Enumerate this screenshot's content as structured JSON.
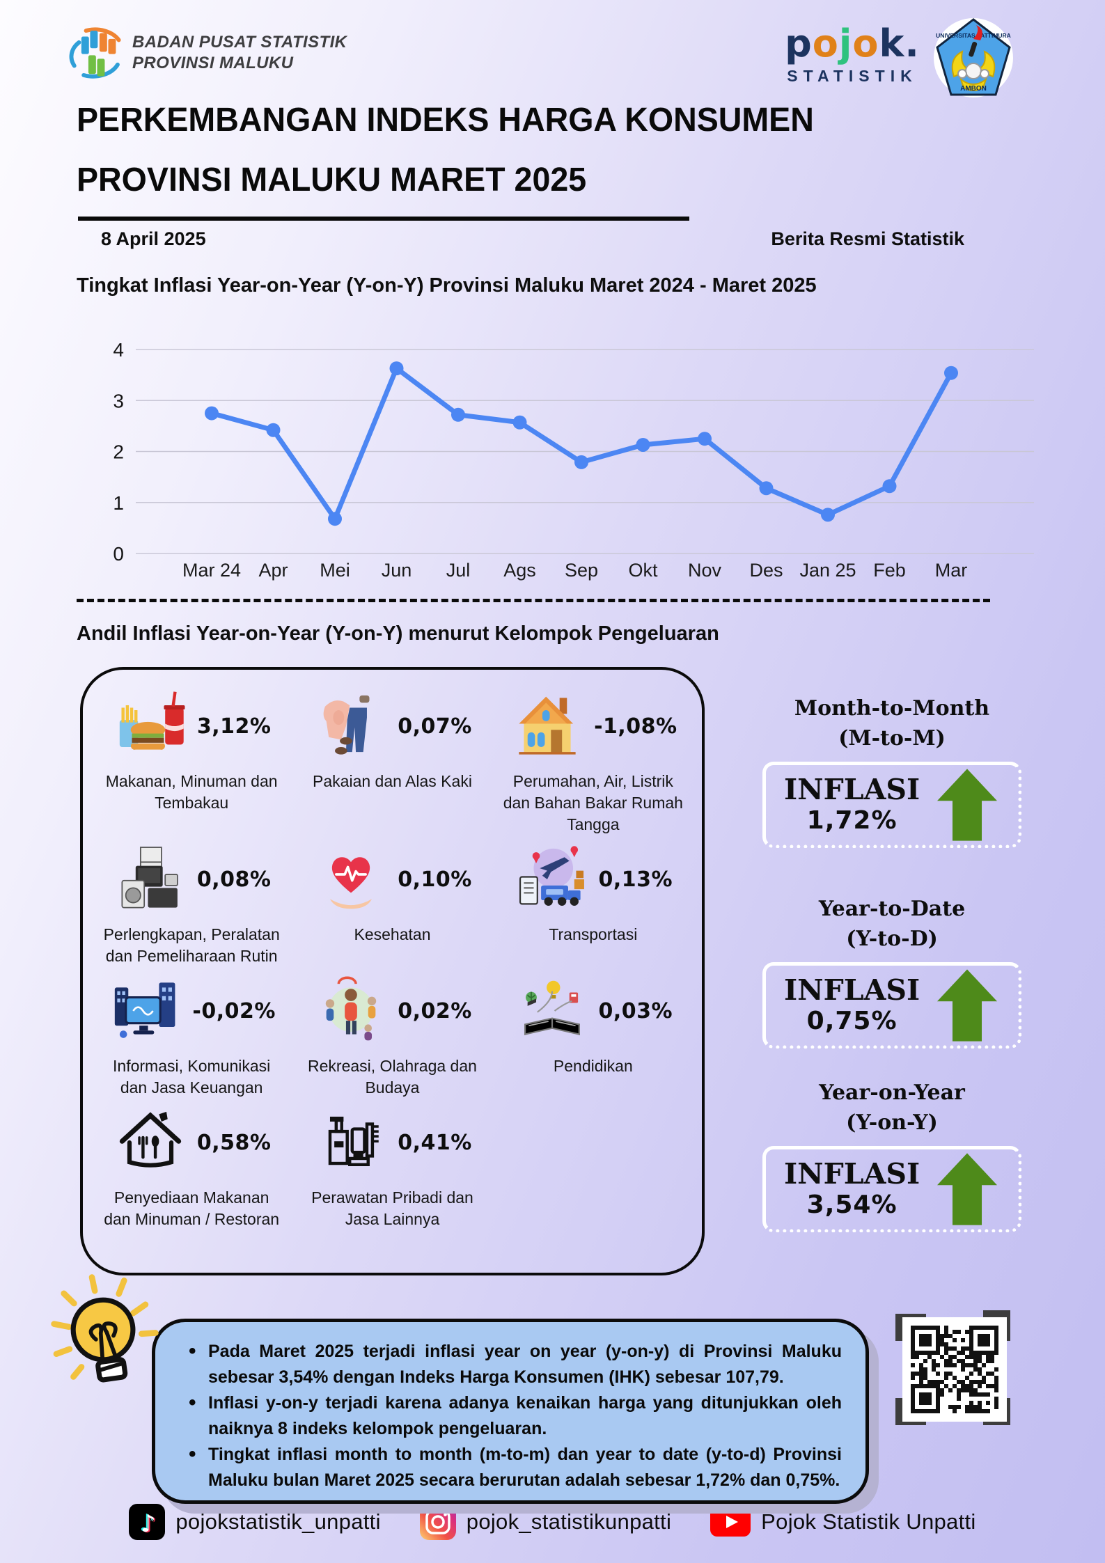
{
  "header": {
    "org_line1": "BADAN PUSAT STATISTIK",
    "org_line2": "PROVINSI MALUKU",
    "pojok_letters": [
      "p",
      "o",
      "j",
      "o",
      "k",
      "."
    ],
    "pojok_sub": "STATISTIK",
    "emblem_top": "UNIVERSITAS PATTIMURA",
    "emblem_bottom": "AMBON"
  },
  "title": {
    "line1": "PERKEMBANGAN INDEKS HARGA KONSUMEN",
    "line2": "PROVINSI MALUKU MARET 2025"
  },
  "meta": {
    "date": "8 April 2025",
    "badge": "Berita Resmi Statistik"
  },
  "section1": {
    "title": "Tingkat Inflasi Year-on-Year (Y-on-Y) Provinsi Maluku Maret 2024 - Maret 2025"
  },
  "chart_data": {
    "type": "line",
    "title": "Tingkat Inflasi Year-on-Year (Y-on-Y) Provinsi Maluku Maret 2024 - Maret 2025",
    "categories": [
      "Mar 24",
      "Apr",
      "Mei",
      "Jun",
      "Jul",
      "Ags",
      "Sep",
      "Okt",
      "Nov",
      "Des",
      "Jan 25",
      "Feb",
      "Mar"
    ],
    "values": [
      2.75,
      2.42,
      0.68,
      3.63,
      2.72,
      2.57,
      1.79,
      2.13,
      2.25,
      1.28,
      0.76,
      1.32,
      3.54
    ],
    "ylim": [
      0,
      4
    ],
    "yticks": [
      0,
      1,
      2,
      3,
      4
    ],
    "grid": true,
    "line_color": "#4c86f3",
    "xlabel": "",
    "ylabel": ""
  },
  "section2": {
    "title": "Andil Inflasi Year-on-Year (Y-on-Y) menurut Kelompok Pengeluaran"
  },
  "andil": {
    "items": [
      {
        "label": "Makanan, Minuman dan Tembakau",
        "value": "3,12%",
        "icon": "food-icon"
      },
      {
        "label": "Pakaian dan Alas Kaki",
        "value": "0,07%",
        "icon": "clothing-icon"
      },
      {
        "label": "Perumahan, Air, Listrik dan Bahan Bakar Rumah Tangga",
        "value": "-1,08%",
        "icon": "house-icon"
      },
      {
        "label": "Perlengkapan, Peralatan dan Pemeliharaan Rutin",
        "value": "0,08%",
        "icon": "appliances-icon"
      },
      {
        "label": "Kesehatan",
        "value": "0,10%",
        "icon": "health-icon"
      },
      {
        "label": "Transportasi",
        "value": "0,13%",
        "icon": "transport-icon"
      },
      {
        "label": "Informasi, Komunikasi dan Jasa Keuangan",
        "value": "-0,02%",
        "icon": "information-icon"
      },
      {
        "label": "Rekreasi, Olahraga dan Budaya",
        "value": "0,02%",
        "icon": "recreation-icon"
      },
      {
        "label": "Pendidikan",
        "value": "0,03%",
        "icon": "education-icon"
      },
      {
        "label": "Penyediaan Makanan dan Minuman / Restoran",
        "value": "0,58%",
        "icon": "restaurant-icon"
      },
      {
        "label": "Perawatan Pribadi dan Jasa Lainnya",
        "value": "0,41%",
        "icon": "personal-care-icon"
      }
    ]
  },
  "panels": [
    {
      "title_line1": "Month-to-Month",
      "title_line2": "(M-to-M)",
      "label": "INFLASI",
      "value": "1,72%"
    },
    {
      "title_line1": "Year-to-Date",
      "title_line2": "(Y-to-D)",
      "label": "INFLASI",
      "value": "0,75%"
    },
    {
      "title_line1": "Year-on-Year",
      "title_line2": "(Y-on-Y)",
      "label": "INFLASI",
      "value": "3,54%"
    }
  ],
  "notes": {
    "bullets": [
      "Pada Maret 2025 terjadi inflasi year on year (y-on-y) di Provinsi Maluku sebesar 3,54% dengan Indeks Harga Konsumen (IHK) sebesar 107,79.",
      "Inflasi y-on-y terjadi karena adanya kenaikan harga yang ditunjukkan oleh naiknya 8 indeks kelompok pengeluaran.",
      "Tingkat inflasi month to month (m-to-m) dan year to date (y-to-d) Provinsi Maluku bulan Maret 2025 secara berurutan adalah sebesar 1,72% dan 0,75%."
    ]
  },
  "footer": {
    "items": [
      {
        "platform": "tiktok",
        "handle": "pojokstatistik_unpatti"
      },
      {
        "platform": "instagram",
        "handle": "pojok_statistikunpatti"
      },
      {
        "platform": "youtube",
        "handle": "Pojok Statistik Unpatti"
      }
    ]
  },
  "colors": {
    "accent_blue": "#4c86f3",
    "arrow_green": "#4e8a1a",
    "notes_bg": "#a9c9f2",
    "navy": "#1c335f",
    "orange": "#e08119",
    "logo_green": "#2ec27e"
  }
}
